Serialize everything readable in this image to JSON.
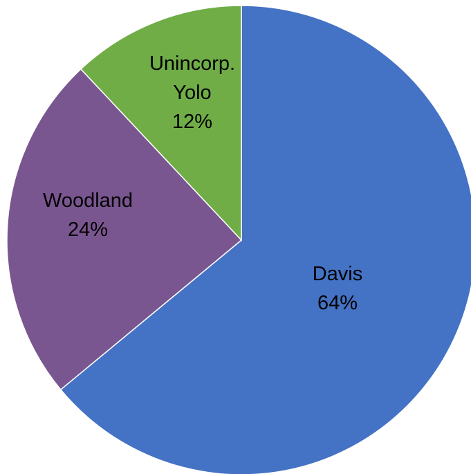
{
  "chart_data": {
    "type": "pie",
    "start_angle_deg": 0,
    "direction": "clockwise",
    "legend": "none",
    "slices": [
      {
        "label_lines": [
          "Davis"
        ],
        "value": 64,
        "value_label": "64%",
        "color": "#4472C4"
      },
      {
        "label_lines": [
          "Woodland"
        ],
        "value": 24,
        "value_label": "24%",
        "color": "#7A5690"
      },
      {
        "label_lines": [
          "Unincorp.",
          "Yolo"
        ],
        "value": 12,
        "value_label": "12%",
        "color": "#70AD47"
      }
    ]
  }
}
